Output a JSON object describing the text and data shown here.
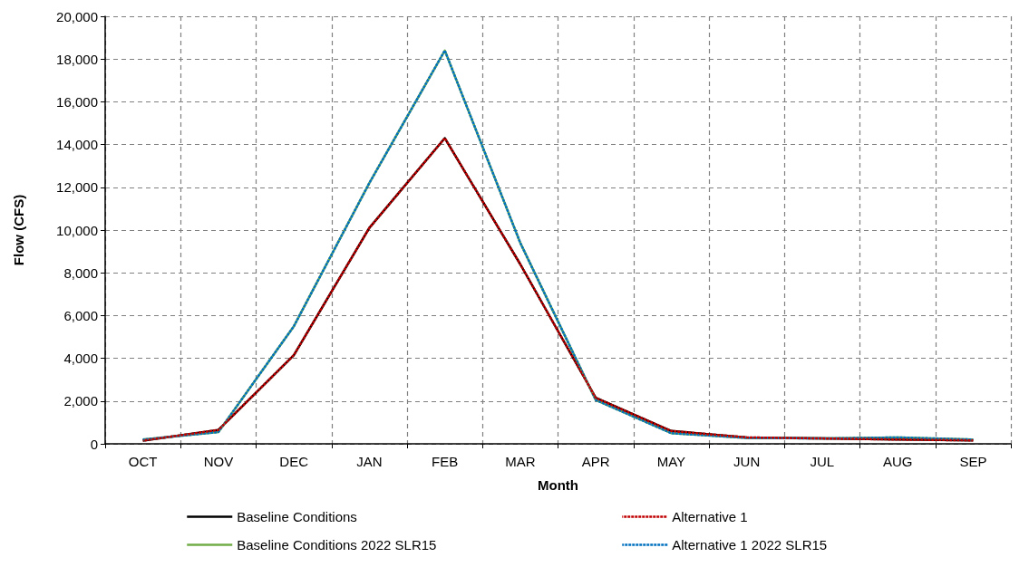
{
  "chart_data": {
    "type": "line",
    "xlabel": "Month",
    "ylabel": "Flow (CFS)",
    "categories": [
      "OCT",
      "NOV",
      "DEC",
      "JAN",
      "FEB",
      "MAR",
      "APR",
      "MAY",
      "JUN",
      "JUL",
      "AUG",
      "SEP"
    ],
    "series": [
      {
        "name": "Baseline Conditions",
        "color": "#000000",
        "line_style": "solid",
        "values": [
          150,
          650,
          4150,
          10100,
          14300,
          8400,
          2150,
          600,
          300,
          250,
          200,
          160
        ]
      },
      {
        "name": "Alternative 1",
        "color": "#c00000",
        "line_style": "dashed",
        "values": [
          150,
          650,
          4150,
          10100,
          14300,
          8400,
          2150,
          600,
          300,
          250,
          200,
          160
        ]
      },
      {
        "name": "Baseline Conditions 2022 SLR15",
        "color": "#70ad47",
        "line_style": "solid",
        "values": [
          200,
          550,
          5500,
          12200,
          18400,
          9400,
          2050,
          500,
          280,
          250,
          300,
          200
        ]
      },
      {
        "name": "Alternative 1 2022 SLR15",
        "color": "#0070c0",
        "line_style": "dashed",
        "values": [
          200,
          550,
          5500,
          12200,
          18400,
          9400,
          2050,
          500,
          280,
          250,
          300,
          200
        ]
      }
    ],
    "ylim": [
      0,
      20000
    ],
    "yticks": [
      {
        "value": 0,
        "label": "0"
      },
      {
        "value": 2000,
        "label": "2,000"
      },
      {
        "value": 4000,
        "label": "4,000"
      },
      {
        "value": 6000,
        "label": "6,000"
      },
      {
        "value": 8000,
        "label": "8,000"
      },
      {
        "value": 10000,
        "label": "10,000"
      },
      {
        "value": 12000,
        "label": "12,000"
      },
      {
        "value": 14000,
        "label": "14,000"
      },
      {
        "value": 16000,
        "label": "16,000"
      },
      {
        "value": 18000,
        "label": "18,000"
      },
      {
        "value": 20000,
        "label": "20,000"
      }
    ],
    "grid": true,
    "legend": "bottom",
    "marker": "none"
  }
}
